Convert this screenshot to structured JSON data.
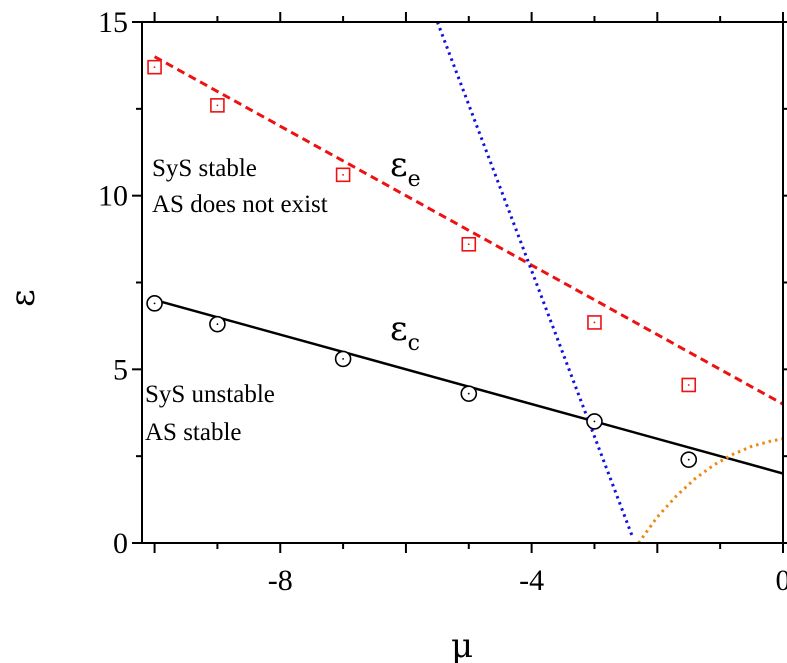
{
  "chart_data": {
    "type": "line",
    "xlabel": "μ",
    "ylabel": "ε",
    "xlim": [
      -10.2,
      0
    ],
    "ylim": [
      0,
      15
    ],
    "x_ticks": [
      -8,
      -4,
      0
    ],
    "x_tick_labels": [
      "-8",
      "-4",
      "0"
    ],
    "y_ticks": [
      0,
      5,
      10,
      15
    ],
    "y_tick_labels": [
      "0",
      "5",
      "10",
      "15"
    ],
    "grid": false,
    "series": [
      {
        "name": "εe",
        "style": "dashed",
        "color": "#ee1111",
        "x": [
          -10,
          0
        ],
        "y": [
          14.0,
          4.0
        ]
      },
      {
        "name": "εc",
        "style": "solid",
        "color": "#000000",
        "x": [
          -10,
          0
        ],
        "y": [
          7.0,
          2.0
        ]
      },
      {
        "style": "dotted",
        "color": "#1111dd",
        "x": [
          -5.5,
          -2.4
        ],
        "y": [
          15.0,
          0.2
        ]
      },
      {
        "style": "dotted",
        "color": "#ee8811",
        "x": [
          -2.3,
          -2.0,
          -1.7,
          -1.4,
          -1.1,
          -0.8,
          -0.5,
          -0.2,
          0.0
        ],
        "y": [
          0.0,
          0.75,
          1.35,
          1.85,
          2.25,
          2.55,
          2.78,
          2.93,
          3.0
        ]
      }
    ],
    "markers": [
      {
        "shape": "square",
        "color": "#ee1111",
        "x": [
          -10,
          -9,
          -7,
          -5,
          -3,
          -1.5
        ],
        "y": [
          13.7,
          12.6,
          10.6,
          8.6,
          6.35,
          4.55
        ]
      },
      {
        "shape": "circle",
        "color": "#000000",
        "x": [
          -10,
          -9,
          -7,
          -5,
          -3,
          -1.5
        ],
        "y": [
          6.9,
          6.3,
          5.3,
          4.3,
          3.5,
          2.4
        ]
      }
    ],
    "annotations": [
      {
        "id": "stable",
        "lines": [
          "SyS stable",
          "AS does not exist"
        ]
      },
      {
        "id": "unstable",
        "lines": [
          "SyS unstable",
          "AS stable"
        ]
      }
    ],
    "series_labels": {
      "e": {
        "main": "ε",
        "sub": "e"
      },
      "c": {
        "main": "ε",
        "sub": "c"
      }
    }
  }
}
